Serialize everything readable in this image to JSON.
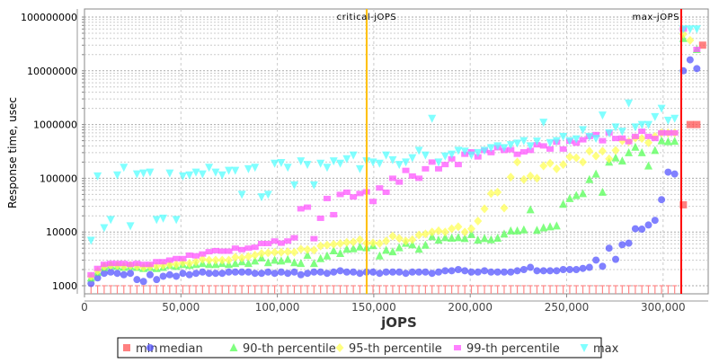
{
  "chart_data": {
    "type": "scatter",
    "title": "",
    "xlabel": "jOPS",
    "ylabel": "Response time, usec",
    "yscale": "log",
    "xlim": [
      0,
      323000
    ],
    "ylim": [
      700,
      150000000
    ],
    "grid": true,
    "x_ticks": [
      0,
      50000,
      100000,
      150000,
      200000,
      250000,
      300000
    ],
    "x_tick_labels": [
      "0",
      "50,000",
      "100,000",
      "150,000",
      "200,000",
      "250,000",
      "300,000"
    ],
    "y_ticks": [
      1000,
      10000,
      100000,
      1000000,
      10000000,
      100000000
    ],
    "y_tick_labels": [
      "1000",
      "10000",
      "100000",
      "1000000",
      "10000000",
      "100000000"
    ],
    "markers": [
      {
        "label": "critical-jOPS",
        "x": 146300,
        "color": "#ffc000"
      },
      {
        "label": "max-jOPS",
        "x": 309400,
        "color": "#ff0000"
      }
    ],
    "legend_position": "bottom",
    "x_step": 3400,
    "series": [
      {
        "name": "min",
        "color": "#ff5555",
        "shape": "square",
        "values": [
          1000,
          1000,
          1000,
          1000,
          1000,
          1000,
          1000,
          1000,
          1000,
          1000,
          1000,
          1000,
          1000,
          1000,
          1000,
          1000,
          1000,
          1000,
          1000,
          1000,
          1000,
          1000,
          1000,
          1000,
          1000,
          1000,
          1000,
          1000,
          1000,
          1000,
          1000,
          1000,
          1000,
          1000,
          1000,
          1000,
          1000,
          1000,
          1000,
          1000,
          1000,
          1000,
          1000,
          1000,
          1000,
          1000,
          1000,
          1000,
          1000,
          1000,
          1000,
          1000,
          1000,
          1000,
          1000,
          1000,
          1000,
          1000,
          1000,
          1000,
          1000,
          1000,
          1000,
          1000,
          1000,
          1000,
          1000,
          1000,
          1000,
          1000,
          1000,
          1000,
          1000,
          1000,
          1000,
          1000,
          1000,
          1000,
          1000,
          1000,
          1000,
          1000,
          1000,
          1000,
          1000,
          1000,
          1000,
          1000,
          1000,
          1000
        ],
        "extra": [
          [
            310500,
            32000
          ],
          [
            314000,
            1000000
          ],
          [
            317500,
            1000000
          ],
          [
            320500,
            30000000
          ]
        ]
      },
      {
        "name": "median",
        "color": "#5555ff",
        "shape": "circle",
        "values": [
          1100,
          1400,
          1700,
          1800,
          1700,
          1600,
          1700,
          1300,
          1200,
          1600,
          1300,
          1500,
          1600,
          1500,
          1700,
          1600,
          1700,
          1800,
          1700,
          1700,
          1700,
          1800,
          1800,
          1800,
          1800,
          1700,
          1700,
          1800,
          1700,
          1800,
          1700,
          1800,
          1600,
          1700,
          1800,
          1800,
          1700,
          1800,
          1900,
          1800,
          1800,
          1700,
          1800,
          1800,
          1700,
          1800,
          1800,
          1800,
          1700,
          1800,
          1800,
          1800,
          1700,
          1800,
          1900,
          1900,
          2000,
          1900,
          1800,
          1800,
          1900,
          1800,
          1800,
          1800,
          1800,
          1900,
          2000,
          2200,
          1900,
          1900,
          1900,
          1900,
          2000,
          2000,
          2000,
          2100,
          2200,
          3000,
          2300,
          5000,
          3100,
          5800,
          6200,
          11500,
          11300,
          13500,
          16500,
          40000,
          130000,
          120000
        ],
        "extra": [
          [
            310500,
            10000000
          ],
          [
            314000,
            16000000
          ],
          [
            317500,
            11000000
          ]
        ]
      },
      {
        "name": "90-th percentile",
        "color": "#55ff55",
        "shape": "triangle-up",
        "values": [
          1400,
          1800,
          2200,
          2400,
          2300,
          2200,
          2300,
          2200,
          2100,
          2200,
          2100,
          2200,
          2400,
          2300,
          2500,
          2400,
          2500,
          2600,
          2500,
          2500,
          2600,
          2500,
          2600,
          2800,
          2600,
          2900,
          3300,
          2700,
          3000,
          2900,
          3100,
          2700,
          2600,
          3700,
          2600,
          3200,
          3600,
          4500,
          4000,
          4800,
          4900,
          5300,
          5100,
          5600,
          3600,
          4600,
          4300,
          5100,
          6200,
          5800,
          4800,
          5700,
          8200,
          7100,
          7900,
          7700,
          7900,
          7600,
          9000,
          7100,
          7600,
          7200,
          7700,
          9200,
          10500,
          10500,
          11000,
          26000,
          10800,
          12000,
          12500,
          13000,
          33000,
          42000,
          48000,
          52000,
          95000,
          120000,
          55000,
          200000,
          240000,
          210000,
          300000,
          380000,
          300000,
          170000,
          330000,
          500000,
          480000,
          490000
        ],
        "extra": [
          [
            310500,
            40000000
          ],
          [
            317500,
            25000000
          ]
        ]
      },
      {
        "name": "95-th percentile",
        "color": "#ffff55",
        "shape": "diamond",
        "values": [
          1500,
          1900,
          2300,
          2400,
          2400,
          2300,
          2400,
          2300,
          2200,
          2300,
          2300,
          2400,
          2500,
          2500,
          2700,
          2600,
          2800,
          3100,
          3000,
          3000,
          3000,
          3000,
          3400,
          3300,
          3500,
          3700,
          4000,
          4100,
          4200,
          4200,
          4300,
          4200,
          4800,
          4700,
          4600,
          5500,
          5700,
          5900,
          6100,
          6400,
          6500,
          7200,
          6200,
          6300,
          6100,
          6800,
          8400,
          7600,
          6800,
          7200,
          8800,
          9200,
          10000,
          10500,
          10000,
          11500,
          12500,
          10000,
          11500,
          16000,
          27000,
          52000,
          55000,
          28000,
          105000,
          200000,
          95000,
          110000,
          100000,
          170000,
          190000,
          150000,
          180000,
          250000,
          240000,
          200000,
          320000,
          260000,
          320000,
          230000,
          330000,
          500000,
          480000,
          560000,
          550000,
          460000,
          600000,
          700000,
          700000,
          700000
        ],
        "extra": [
          [
            310500,
            48000000
          ],
          [
            314000,
            37000000
          ]
        ]
      },
      {
        "name": "99-th percentile",
        "color": "#ff55ff",
        "shape": "square-small",
        "values": [
          1600,
          2100,
          2500,
          2600,
          2600,
          2600,
          2500,
          2600,
          2500,
          2500,
          2800,
          2800,
          3000,
          3200,
          3200,
          3700,
          3600,
          3900,
          4300,
          4500,
          4400,
          4400,
          5000,
          4700,
          5000,
          5200,
          6100,
          6100,
          6800,
          6200,
          6800,
          7800,
          27000,
          29000,
          7500,
          18000,
          42000,
          21000,
          50000,
          55000,
          45000,
          52000,
          56000,
          37000,
          66000,
          55000,
          100000,
          85000,
          140000,
          110000,
          100000,
          150000,
          200000,
          150000,
          180000,
          230000,
          180000,
          280000,
          310000,
          250000,
          330000,
          300000,
          370000,
          330000,
          340000,
          280000,
          310000,
          330000,
          420000,
          400000,
          350000,
          470000,
          350000,
          490000,
          450000,
          520000,
          600000,
          650000,
          500000,
          700000,
          550000,
          560000,
          480000,
          600000,
          750000,
          600000,
          550000,
          700000,
          700000,
          700000
        ],
        "extra": [
          [
            310500,
            60000000
          ],
          [
            317500,
            25000000
          ]
        ]
      },
      {
        "name": "max",
        "color": "#55ffff",
        "shape": "triangle-down",
        "values": [
          7000,
          110000,
          12000,
          17000,
          115000,
          160000,
          13000,
          120000,
          125000,
          130000,
          17000,
          18000,
          125000,
          17000,
          110000,
          115000,
          130000,
          120000,
          160000,
          130000,
          115000,
          140000,
          140000,
          50000,
          150000,
          160000,
          45000,
          50000,
          190000,
          195000,
          160000,
          75000,
          210000,
          180000,
          75000,
          190000,
          160000,
          210000,
          190000,
          230000,
          270000,
          150000,
          210000,
          200000,
          190000,
          270000,
          220000,
          180000,
          200000,
          240000,
          330000,
          270000,
          1300000,
          200000,
          260000,
          280000,
          330000,
          320000,
          270000,
          300000,
          330000,
          370000,
          400000,
          370000,
          420000,
          450000,
          500000,
          400000,
          490000,
          1100000,
          460000,
          500000,
          600000,
          500000,
          540000,
          800000,
          600000,
          550000,
          1500000,
          700000,
          900000,
          750000,
          2500000,
          900000,
          1000000,
          1000000,
          1400000,
          2000000,
          1200000,
          1300000
        ],
        "extra": [
          [
            310500,
            60000000
          ],
          [
            314000,
            60000000
          ],
          [
            317500,
            60000000
          ]
        ]
      }
    ]
  }
}
